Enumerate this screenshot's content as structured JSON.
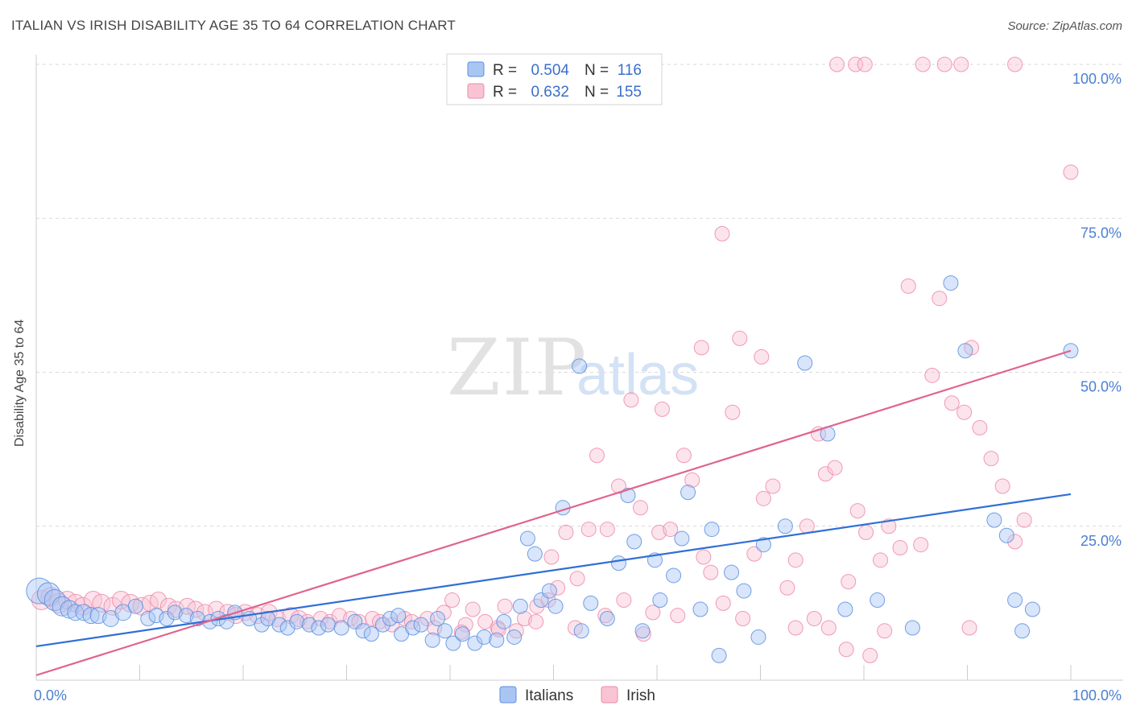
{
  "title": "ITALIAN VS IRISH DISABILITY AGE 35 TO 64 CORRELATION CHART",
  "source": "Source: ZipAtlas.com",
  "watermark": {
    "zip": "ZIP",
    "atlas": "atlas"
  },
  "legend_box": {
    "rows": [
      {
        "r_label": "R =",
        "r_value": "0.504",
        "n_label": "N =",
        "n_value": "116",
        "color": "#7aaaf0"
      },
      {
        "r_label": "R =",
        "r_value": "0.632",
        "n_label": "N =",
        "n_value": "155",
        "color": "#f4a0b8"
      }
    ]
  },
  "chart_data": {
    "type": "scatter",
    "ylabel": "Disability Age 35 to 64",
    "xlim": [
      0,
      100
    ],
    "ylim": [
      0,
      100
    ],
    "x_tick_labels": [
      {
        "value": 0,
        "label": "0.0%"
      },
      {
        "value": 100,
        "label": "100.0%"
      }
    ],
    "y_tick_labels": [
      {
        "value": 25,
        "label": "25.0%"
      },
      {
        "value": 50,
        "label": "50.0%"
      },
      {
        "value": 75,
        "label": "75.0%"
      },
      {
        "value": 100,
        "label": "100.0%"
      }
    ],
    "grid": "horizontal dashed",
    "legend_position": "bottom-center",
    "series": [
      {
        "name": "Italians",
        "color": "#5b8fe0",
        "fill": "#a9c6f3",
        "trend": {
          "x": [
            0,
            100
          ],
          "y": [
            5.5,
            30.2
          ],
          "color": "#2f6fd6"
        },
        "points": [
          [
            0.3,
            14.5,
            16
          ],
          [
            1.2,
            14,
            14
          ],
          [
            1.8,
            13,
            13
          ],
          [
            2.5,
            12,
            12
          ],
          [
            3.2,
            11.5,
            11
          ],
          [
            3.8,
            11,
            10
          ],
          [
            4.6,
            11,
            10
          ],
          [
            5.3,
            10.5,
            10
          ],
          [
            6,
            10.5,
            10
          ],
          [
            7.2,
            10,
            10
          ],
          [
            8.4,
            11,
            10
          ],
          [
            9.6,
            12,
            9
          ],
          [
            10.8,
            10,
            9
          ],
          [
            11.6,
            10.5,
            9
          ],
          [
            12.6,
            10,
            9
          ],
          [
            13.4,
            11,
            9
          ],
          [
            14.5,
            10.5,
            9
          ],
          [
            15.6,
            10,
            9
          ],
          [
            16.8,
            9.5,
            9
          ],
          [
            17.6,
            10,
            9
          ],
          [
            18.4,
            9.5,
            9
          ],
          [
            19.2,
            11,
            9
          ],
          [
            20.6,
            10,
            9
          ],
          [
            21.8,
            9,
            9
          ],
          [
            22.4,
            10,
            9
          ],
          [
            23.5,
            9,
            9
          ],
          [
            24.3,
            8.5,
            9
          ],
          [
            25.2,
            9.5,
            9
          ],
          [
            26.4,
            9,
            9
          ],
          [
            27.3,
            8.5,
            9
          ],
          [
            28.2,
            9,
            9
          ],
          [
            29.5,
            8.5,
            9
          ],
          [
            30.8,
            9.5,
            9
          ],
          [
            31.6,
            8,
            9
          ],
          [
            32.4,
            7.5,
            9
          ],
          [
            33.5,
            9,
            9
          ],
          [
            34.2,
            10,
            9
          ],
          [
            35.3,
            7.5,
            9
          ],
          [
            36.4,
            8.5,
            9
          ],
          [
            37.2,
            9,
            9
          ],
          [
            38.3,
            6.5,
            9
          ],
          [
            39.5,
            8,
            9
          ],
          [
            40.3,
            6,
            9
          ],
          [
            41.2,
            7.5,
            9
          ],
          [
            42.4,
            6,
            9
          ],
          [
            43.3,
            7,
            9
          ],
          [
            44.5,
            6.5,
            9
          ],
          [
            45.2,
            9.5,
            9
          ],
          [
            46.2,
            7,
            9
          ],
          [
            35,
            10.5,
            9
          ],
          [
            38.8,
            10,
            9
          ],
          [
            46.8,
            12,
            9
          ],
          [
            47.5,
            23,
            9
          ],
          [
            48.2,
            20.5,
            9
          ],
          [
            48.8,
            13,
            9
          ],
          [
            49.6,
            14.5,
            9
          ],
          [
            50.2,
            12,
            9
          ],
          [
            50.9,
            28,
            9
          ],
          [
            52.7,
            8,
            9
          ],
          [
            53.6,
            12.5,
            9
          ],
          [
            55.2,
            10,
            9
          ],
          [
            56.3,
            19,
            9
          ],
          [
            57.2,
            30,
            9
          ],
          [
            57.8,
            22.5,
            9
          ],
          [
            58.6,
            8,
            9
          ],
          [
            59.8,
            19.5,
            9
          ],
          [
            60.3,
            13,
            9
          ],
          [
            61.6,
            17,
            9
          ],
          [
            62.4,
            23,
            9
          ],
          [
            63,
            30.5,
            9
          ],
          [
            64.2,
            11.5,
            9
          ],
          [
            65.3,
            24.5,
            9
          ],
          [
            66,
            4,
            9
          ],
          [
            67.2,
            17.5,
            9
          ],
          [
            68.4,
            14.5,
            9
          ],
          [
            69.8,
            7,
            9
          ],
          [
            70.3,
            22,
            9
          ],
          [
            72.4,
            25,
            9
          ],
          [
            74.3,
            51.5,
            9
          ],
          [
            76.5,
            40,
            9
          ],
          [
            78.2,
            11.5,
            9
          ],
          [
            52.5,
            51,
            9
          ],
          [
            88.4,
            64.5,
            9
          ],
          [
            89.8,
            53.5,
            9
          ],
          [
            92.6,
            26,
            9
          ],
          [
            93.8,
            23.5,
            9
          ],
          [
            94.6,
            13,
            9
          ],
          [
            96.3,
            11.5,
            9
          ],
          [
            100,
            53.5,
            9
          ],
          [
            95.3,
            8,
            9
          ],
          [
            81.3,
            13,
            9
          ],
          [
            84.7,
            8.5,
            9
          ]
        ]
      },
      {
        "name": "Irish",
        "color": "#ee8aa8",
        "fill": "#f8c4d4",
        "trend": {
          "x": [
            0,
            100
          ],
          "y": [
            0.8,
            53.5
          ],
          "color": "#e0648e"
        },
        "points": [
          [
            0.5,
            13,
            12
          ],
          [
            1.4,
            13.5,
            12
          ],
          [
            2.2,
            12.5,
            12
          ],
          [
            3,
            13,
            11
          ],
          [
            3.8,
            12.5,
            11
          ],
          [
            4.5,
            12,
            11
          ],
          [
            5.5,
            13,
            11
          ],
          [
            6.3,
            12.5,
            11
          ],
          [
            7.4,
            12,
            11
          ],
          [
            8.2,
            13,
            11
          ],
          [
            9.1,
            12.5,
            11
          ],
          [
            10.2,
            12,
            11
          ],
          [
            11,
            12.5,
            10
          ],
          [
            11.8,
            13,
            10
          ],
          [
            12.8,
            12,
            10
          ],
          [
            13.5,
            11.5,
            10
          ],
          [
            14.6,
            12,
            10
          ],
          [
            15.4,
            11.5,
            10
          ],
          [
            16.3,
            11,
            10
          ],
          [
            17.4,
            11.5,
            10
          ],
          [
            18.5,
            11,
            10
          ],
          [
            19.3,
            10.5,
            10
          ],
          [
            20.2,
            11,
            10
          ],
          [
            21.4,
            10.5,
            10
          ],
          [
            22.5,
            11,
            10
          ],
          [
            23.3,
            10,
            10
          ],
          [
            24.6,
            10.5,
            10
          ],
          [
            25.4,
            10,
            10
          ],
          [
            26.2,
            9.5,
            9
          ],
          [
            27.5,
            10,
            9
          ],
          [
            28.4,
            9.5,
            9
          ],
          [
            29.3,
            10.5,
            9
          ],
          [
            30.4,
            10,
            9
          ],
          [
            31.2,
            9.5,
            9
          ],
          [
            32.5,
            10,
            9
          ],
          [
            33.2,
            9.5,
            9
          ],
          [
            34.4,
            9,
            9
          ],
          [
            35.6,
            10,
            9
          ],
          [
            36.3,
            9.5,
            9
          ],
          [
            37.8,
            10,
            9
          ],
          [
            38.5,
            8.5,
            9
          ],
          [
            39.4,
            11,
            9
          ],
          [
            40.2,
            13,
            9
          ],
          [
            41.5,
            9,
            9
          ],
          [
            42.2,
            11.5,
            9
          ],
          [
            43.4,
            9.5,
            9
          ],
          [
            44.6,
            8.5,
            9
          ],
          [
            45.3,
            12,
            9
          ],
          [
            46.4,
            8,
            9
          ],
          [
            47.2,
            10,
            9
          ],
          [
            48.4,
            12,
            9
          ],
          [
            49.8,
            20,
            9
          ],
          [
            50.4,
            15,
            9
          ],
          [
            51.2,
            24,
            9
          ],
          [
            52.3,
            16.5,
            9
          ],
          [
            53.4,
            24.5,
            9
          ],
          [
            54.2,
            36.5,
            9
          ],
          [
            55.2,
            24.5,
            9
          ],
          [
            56.3,
            31.5,
            9
          ],
          [
            56.8,
            13,
            9
          ],
          [
            57.5,
            45.5,
            9
          ],
          [
            58.4,
            28,
            9
          ],
          [
            59.6,
            11,
            9
          ],
          [
            60.2,
            24,
            9
          ],
          [
            61.3,
            24.5,
            9
          ],
          [
            62.6,
            36.5,
            9
          ],
          [
            63.4,
            32.5,
            9
          ],
          [
            64.5,
            20,
            9
          ],
          [
            65.2,
            17.5,
            9
          ],
          [
            66.4,
            12.5,
            9
          ],
          [
            67.3,
            43.5,
            9
          ],
          [
            68.3,
            10,
            9
          ],
          [
            69.4,
            20.5,
            9
          ],
          [
            70.3,
            29.5,
            9
          ],
          [
            71.2,
            31.5,
            9
          ],
          [
            72.6,
            15,
            9
          ],
          [
            73.4,
            19.5,
            9
          ],
          [
            74.5,
            25,
            9
          ],
          [
            75.6,
            40,
            9
          ],
          [
            76.3,
            33.5,
            9
          ],
          [
            77.2,
            34.5,
            9
          ],
          [
            78.5,
            16,
            9
          ],
          [
            79.4,
            27.5,
            9
          ],
          [
            80.2,
            24,
            9
          ],
          [
            81.6,
            19.5,
            9
          ],
          [
            82.4,
            25,
            9
          ],
          [
            83.5,
            21.5,
            9
          ],
          [
            84.3,
            64,
            9
          ],
          [
            85.5,
            22,
            9
          ],
          [
            86.6,
            49.5,
            9
          ],
          [
            87.3,
            62,
            9
          ],
          [
            88.5,
            45,
            9
          ],
          [
            89.7,
            43.5,
            9
          ],
          [
            90.4,
            54,
            9
          ],
          [
            91.2,
            41,
            9
          ],
          [
            92.3,
            36,
            9
          ],
          [
            93.4,
            31.5,
            9
          ],
          [
            94.6,
            22.5,
            9
          ],
          [
            95.5,
            26,
            9
          ],
          [
            68,
            55.5,
            9
          ],
          [
            64.3,
            54,
            9
          ],
          [
            70.1,
            52.5,
            9
          ],
          [
            60.5,
            44,
            9
          ],
          [
            66.3,
            72.5,
            9
          ],
          [
            77.4,
            100,
            9
          ],
          [
            79.2,
            100,
            9
          ],
          [
            80.1,
            100,
            9
          ],
          [
            85.7,
            100,
            9
          ],
          [
            87.8,
            100,
            9
          ],
          [
            89.4,
            100,
            9
          ],
          [
            94.6,
            100,
            9
          ],
          [
            100,
            82.5,
            9
          ],
          [
            73.4,
            8.5,
            9
          ],
          [
            75.2,
            10,
            9
          ],
          [
            76.6,
            8.5,
            9
          ],
          [
            58.7,
            7.5,
            9
          ],
          [
            52.1,
            8.5,
            9
          ],
          [
            48.3,
            9.5,
            9
          ],
          [
            44.7,
            8.2,
            9
          ],
          [
            41.1,
            7.8,
            9
          ],
          [
            49.5,
            13,
            9
          ],
          [
            55,
            10.5,
            9
          ],
          [
            62,
            10.5,
            9
          ],
          [
            78.3,
            5,
            9
          ],
          [
            80.6,
            4,
            9
          ],
          [
            82,
            8,
            9
          ],
          [
            90.2,
            8.5,
            9
          ]
        ]
      }
    ]
  }
}
